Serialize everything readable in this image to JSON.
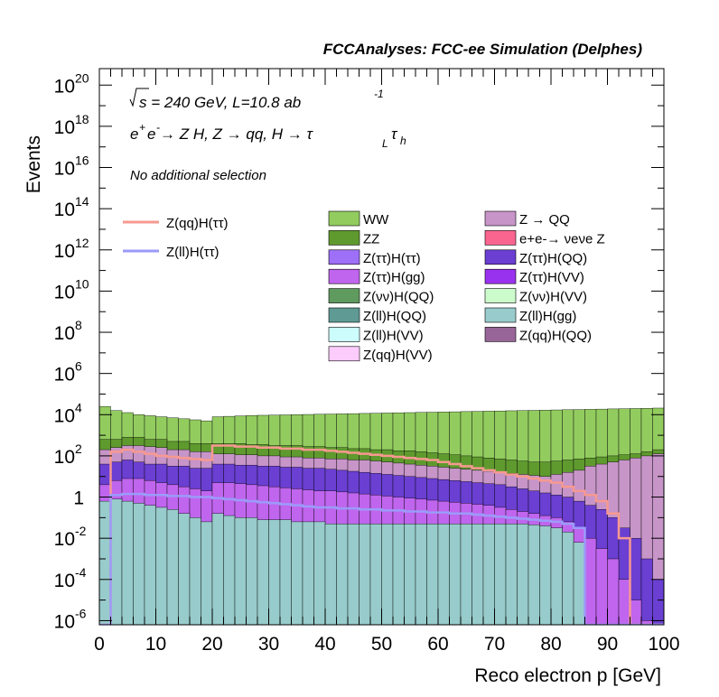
{
  "chart_data": {
    "type": "histogram",
    "stacked": true,
    "title": "FCCAnalyses: FCC-ee Simulation (Delphes)",
    "xlabel": "Reco electron p [GeV]",
    "ylabel": "Events",
    "xlim": [
      0,
      100
    ],
    "ylim_log10": [
      -6.2,
      20.8
    ],
    "log_y": true,
    "x_ticks": [
      "0",
      "10",
      "20",
      "30",
      "40",
      "50",
      "60",
      "70",
      "80",
      "90",
      "100"
    ],
    "y_ticks": [
      {
        "exp": -6,
        "label": "10",
        "sup": "-6"
      },
      {
        "exp": -4,
        "label": "10",
        "sup": "-4"
      },
      {
        "exp": -2,
        "label": "10",
        "sup": "-2"
      },
      {
        "exp": 0,
        "label": "1",
        "sup": ""
      },
      {
        "exp": 2,
        "label": "10",
        "sup": "2"
      },
      {
        "exp": 4,
        "label": "10",
        "sup": "4"
      },
      {
        "exp": 6,
        "label": "10",
        "sup": "6"
      },
      {
        "exp": 8,
        "label": "10",
        "sup": "8"
      },
      {
        "exp": 10,
        "label": "10",
        "sup": "10"
      },
      {
        "exp": 12,
        "label": "10",
        "sup": "12"
      },
      {
        "exp": 14,
        "label": "10",
        "sup": "14"
      },
      {
        "exp": 16,
        "label": "10",
        "sup": "16"
      },
      {
        "exp": 18,
        "label": "10",
        "sup": "18"
      },
      {
        "exp": 20,
        "label": "10",
        "sup": "20"
      }
    ],
    "annotations": {
      "line1_prefix": "s = 240 GeV, L=10.8 ab",
      "line1_sup": "-1",
      "line2_a": "e",
      "line2_a_sup": "+",
      "line2_b": "e",
      "line2_b_sup": "-",
      "line2_c": " → Z H, Z  → qq, H  → τ",
      "line2_sub1": "L",
      "line2_d": "τ",
      "line2_sub2": "h",
      "line3": "No additional selection"
    },
    "bins": [
      0,
      2,
      4,
      6,
      8,
      10,
      12,
      14,
      16,
      18,
      20,
      22,
      24,
      26,
      28,
      30,
      32,
      34,
      36,
      38,
      40,
      42,
      44,
      46,
      48,
      50,
      52,
      54,
      56,
      58,
      60,
      62,
      64,
      66,
      68,
      70,
      72,
      74,
      76,
      78,
      80,
      82,
      84,
      86,
      88,
      90,
      92,
      94,
      96,
      98,
      100
    ],
    "stack_totals_log10": [
      4.4,
      4.2,
      4.1,
      4.0,
      3.95,
      3.9,
      3.85,
      3.8,
      3.75,
      3.7,
      3.9,
      3.92,
      3.94,
      3.96,
      3.97,
      3.98,
      3.99,
      4.0,
      4.01,
      4.02,
      4.03,
      4.04,
      4.05,
      4.06,
      4.07,
      4.08,
      4.09,
      4.1,
      4.11,
      4.12,
      4.13,
      4.14,
      4.15,
      4.16,
      4.17,
      4.18,
      4.19,
      4.2,
      4.21,
      4.22,
      4.23,
      4.24,
      4.25,
      4.26,
      4.27,
      4.28,
      4.29,
      4.3,
      4.31,
      4.32
    ],
    "stack_layers_log10": [
      {
        "name": "WW",
        "color": "#92cc5f",
        "top": [
          4.4,
          4.2,
          4.1,
          4.0,
          3.95,
          3.9,
          3.85,
          3.8,
          3.75,
          3.7,
          3.9,
          3.92,
          3.94,
          3.96,
          3.97,
          3.98,
          3.99,
          4.0,
          4.01,
          4.02,
          4.03,
          4.04,
          4.05,
          4.06,
          4.07,
          4.08,
          4.09,
          4.1,
          4.11,
          4.12,
          4.13,
          4.14,
          4.15,
          4.16,
          4.17,
          4.18,
          4.19,
          4.2,
          4.21,
          4.22,
          4.23,
          4.24,
          4.25,
          4.26,
          4.27,
          4.28,
          4.29,
          4.3,
          4.31,
          4.32
        ]
      },
      {
        "name": "ZZ",
        "color": "#5f9a2e",
        "top": [
          2.8,
          2.8,
          2.9,
          2.9,
          2.8,
          2.8,
          2.7,
          2.7,
          2.6,
          2.6,
          2.6,
          2.6,
          2.6,
          2.55,
          2.55,
          2.5,
          2.5,
          2.5,
          2.45,
          2.45,
          2.4,
          2.4,
          2.35,
          2.35,
          2.3,
          2.3,
          2.25,
          2.25,
          2.2,
          2.15,
          2.1,
          2.05,
          2.0,
          1.95,
          1.9,
          1.85,
          1.8,
          1.75,
          1.7,
          1.7,
          1.75,
          1.8,
          1.85,
          1.9,
          1.95,
          2.0,
          2.05,
          2.1,
          2.2,
          2.3
        ]
      },
      {
        "name": "Z → QQ",
        "color": "#c795c8",
        "top": [
          2.3,
          2.4,
          2.5,
          2.5,
          2.45,
          2.4,
          2.3,
          2.3,
          2.2,
          2.2,
          2.1,
          2.1,
          2.05,
          2.05,
          2.0,
          2.0,
          1.95,
          1.95,
          1.9,
          1.9,
          1.85,
          1.85,
          1.8,
          1.8,
          1.75,
          1.7,
          1.65,
          1.6,
          1.55,
          1.5,
          1.45,
          1.4,
          1.35,
          1.3,
          1.25,
          1.2,
          1.15,
          1.1,
          1.05,
          1.0,
          1.1,
          1.2,
          1.3,
          1.5,
          1.6,
          1.7,
          1.8,
          1.9,
          2.0,
          2.1
        ]
      },
      {
        "name": "Z(ττ)H(QQ)",
        "color": "#6a3fd2",
        "top": [
          1.6,
          1.7,
          1.8,
          1.7,
          1.6,
          1.6,
          1.5,
          1.5,
          1.4,
          1.4,
          1.6,
          1.6,
          1.55,
          1.55,
          1.5,
          1.5,
          1.45,
          1.45,
          1.4,
          1.4,
          1.35,
          1.3,
          1.25,
          1.2,
          1.15,
          1.1,
          1.05,
          1.0,
          0.95,
          0.9,
          0.85,
          0.8,
          0.75,
          0.7,
          0.65,
          0.6,
          0.5,
          0.4,
          0.3,
          0.2,
          0.1,
          0.0,
          -0.2,
          -0.4,
          -0.6,
          -1.0,
          -1.5,
          -2.0,
          -3.0,
          -4.0
        ]
      },
      {
        "name": "Z(ττ)H(gg)",
        "color": "#c065ee",
        "top": [
          0.6,
          0.8,
          0.9,
          0.9,
          0.8,
          0.7,
          0.6,
          0.5,
          0.4,
          0.3,
          0.7,
          0.7,
          0.65,
          0.6,
          0.55,
          0.5,
          0.45,
          0.4,
          0.35,
          0.3,
          0.3,
          0.25,
          0.2,
          0.15,
          0.1,
          0.05,
          0.0,
          -0.05,
          -0.1,
          -0.15,
          -0.2,
          -0.25,
          -0.3,
          -0.35,
          -0.4,
          -0.5,
          -0.6,
          -0.7,
          -0.8,
          -0.9,
          -1.0,
          -1.2,
          -1.5,
          -2.0,
          -2.5,
          -3.0,
          -4.0,
          -5.0,
          -6.0,
          -6.2
        ]
      },
      {
        "name": "Z(ll)H(gg)",
        "color": "#98cbcb",
        "top": [
          -0.2,
          -0.1,
          -0.2,
          -0.3,
          -0.4,
          -0.5,
          -0.6,
          -0.8,
          -1.0,
          -1.2,
          -0.8,
          -0.9,
          -1.0,
          -1.0,
          -1.1,
          -1.1,
          -1.1,
          -1.2,
          -1.2,
          -1.2,
          -1.3,
          -1.3,
          -1.3,
          -1.3,
          -1.3,
          -1.3,
          -1.3,
          -1.3,
          -1.3,
          -1.3,
          -1.3,
          -1.3,
          -1.3,
          -1.3,
          -1.3,
          -1.3,
          -1.3,
          -1.3,
          -1.35,
          -1.4,
          -1.5,
          -1.7,
          -2.2,
          -6.2,
          -6.2,
          -6.2,
          -6.2,
          -6.2,
          -6.2,
          -6.2
        ]
      }
    ],
    "overlay_lines": [
      {
        "name": "Z(qq)H(ττ)",
        "color": "#f79990",
        "values_log10": [
          -6.2,
          2.2,
          2.3,
          2.2,
          2.1,
          2.0,
          1.95,
          1.9,
          1.85,
          1.8,
          2.5,
          2.5,
          2.45,
          2.45,
          2.4,
          2.4,
          2.35,
          2.35,
          2.3,
          2.3,
          2.25,
          2.2,
          2.15,
          2.1,
          2.05,
          2.0,
          1.95,
          1.9,
          1.85,
          1.8,
          1.7,
          1.6,
          1.5,
          1.4,
          1.3,
          1.2,
          1.1,
          1.0,
          0.9,
          0.8,
          0.7,
          0.5,
          0.3,
          0.1,
          -0.2,
          -0.8,
          -2.0,
          -6.2,
          -6.2,
          -6.2
        ]
      },
      {
        "name": "Z(ll)H(ττ)",
        "color": "#9b9bf9",
        "values_log10": [
          -6.2,
          0.1,
          0.15,
          0.15,
          0.1,
          0.1,
          0.05,
          0.05,
          0.0,
          0.0,
          -0.05,
          -0.1,
          -0.15,
          -0.2,
          -0.25,
          -0.3,
          -0.35,
          -0.4,
          -0.45,
          -0.5,
          -0.5,
          -0.55,
          -0.55,
          -0.6,
          -0.6,
          -0.65,
          -0.65,
          -0.7,
          -0.7,
          -0.75,
          -0.75,
          -0.8,
          -0.8,
          -0.85,
          -0.9,
          -0.95,
          -1.0,
          -1.05,
          -1.1,
          -1.15,
          -1.2,
          -1.3,
          -1.5,
          -6.2,
          -6.2,
          -6.2,
          -6.2,
          -6.2,
          -6.2,
          -6.2
        ]
      }
    ],
    "legend_left": [
      {
        "name": "Z(qq)H(ττ)",
        "color": "#f79990"
      },
      {
        "name": "Z(ll)H(ττ)",
        "color": "#9b9bf9"
      }
    ],
    "legend_col1": [
      {
        "name": "WW",
        "color": "#92cc5f"
      },
      {
        "name": "ZZ",
        "color": "#5f9a2e"
      },
      {
        "name": "Z(ττ)H(ττ)",
        "color": "#9e6ff7"
      },
      {
        "name": "Z(ττ)H(gg)",
        "color": "#c065ee"
      },
      {
        "name": "Z(νν)H(QQ)",
        "color": "#5f9a5f"
      },
      {
        "name": "Z(ll)H(QQ)",
        "color": "#5f9a95"
      },
      {
        "name": "Z(ll)H(VV)",
        "color": "#ccfcfc"
      },
      {
        "name": "Z(qq)H(VV)",
        "color": "#fcccfc"
      }
    ],
    "legend_col2": [
      {
        "name": "Z → QQ",
        "color": "#c795c8"
      },
      {
        "name": "e+e-→ νeνe Z",
        "color": "#f9658f"
      },
      {
        "name": "Z(ττ)H(QQ)",
        "color": "#6a3fd2"
      },
      {
        "name": "Z(ττ)H(VV)",
        "color": "#9932ee"
      },
      {
        "name": "Z(νν)H(VV)",
        "color": "#ccfccc"
      },
      {
        "name": "Z(ll)H(gg)",
        "color": "#98cbcb"
      },
      {
        "name": "Z(qq)H(QQ)",
        "color": "#986598"
      }
    ]
  }
}
